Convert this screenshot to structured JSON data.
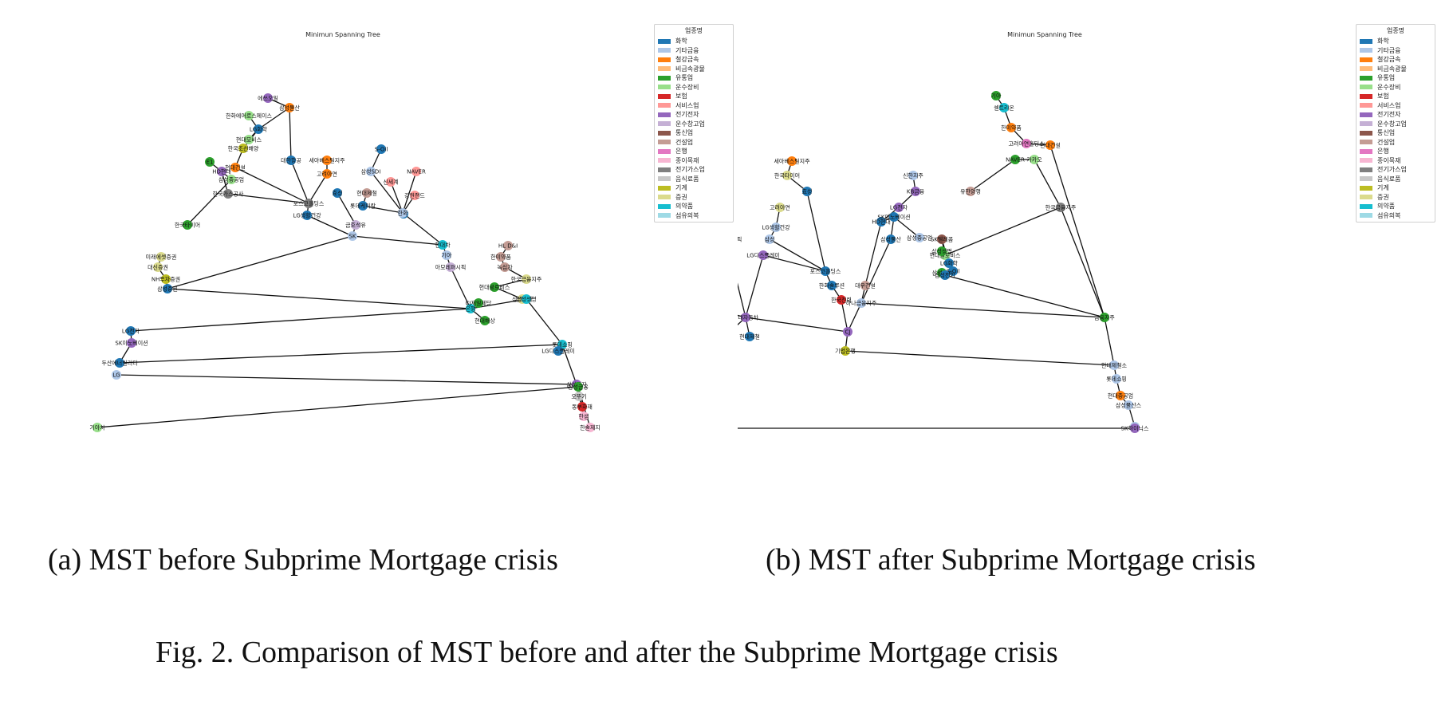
{
  "figure": {
    "caption": "Fig. 2.  Comparison of MST before and after the Subprime Mortgage crisis"
  },
  "panels": [
    {
      "id": "a",
      "title": "Minimun Spanning Tree",
      "caption": "(a) MST before Subprime Mortgage crisis",
      "legend_title": "업종명"
    },
    {
      "id": "b",
      "title": "Minimun Spanning Tree",
      "caption": "(b) MST after Subprime Mortgage crisis",
      "legend_title": "업종명"
    }
  ],
  "legend": [
    {
      "label": "화학",
      "color": "#1f77b4"
    },
    {
      "label": "기타금융",
      "color": "#aec7e8"
    },
    {
      "label": "철강금속",
      "color": "#ff7f0e"
    },
    {
      "label": "비금속광물",
      "color": "#ffbb78"
    },
    {
      "label": "유통업",
      "color": "#2ca02c"
    },
    {
      "label": "운수장비",
      "color": "#98df8a"
    },
    {
      "label": "보험",
      "color": "#d62728"
    },
    {
      "label": "서비스업",
      "color": "#ff9896"
    },
    {
      "label": "전기전자",
      "color": "#9467bd"
    },
    {
      "label": "운수창고업",
      "color": "#c5b0d5"
    },
    {
      "label": "통신업",
      "color": "#8c564b"
    },
    {
      "label": "건설업",
      "color": "#c49c94"
    },
    {
      "label": "은행",
      "color": "#e377c2"
    },
    {
      "label": "종이목재",
      "color": "#f7b6d2"
    },
    {
      "label": "전기가스업",
      "color": "#7f7f7f"
    },
    {
      "label": "음식료품",
      "color": "#c7c7c7"
    },
    {
      "label": "기계",
      "color": "#bcbd22"
    },
    {
      "label": "증권",
      "color": "#dbdb8d"
    },
    {
      "label": "의약품",
      "color": "#17becf"
    },
    {
      "label": "섬유의복",
      "color": "#9edae5"
    }
  ],
  "graphs": [
    {
      "nodes": [
        {
          "id": "a1",
          "label": "에쓰오일",
          "sector": 8
        },
        {
          "id": "a2",
          "label": "삼성물산",
          "sector": 2
        },
        {
          "id": "a3",
          "label": "한화에어로스페이스",
          "sector": 5
        },
        {
          "id": "a4",
          "label": "LG화학",
          "sector": 0
        },
        {
          "id": "a5",
          "label": "현대모비스",
          "sector": 5
        },
        {
          "id": "a6",
          "label": "한국조선해양",
          "sector": 16
        },
        {
          "id": "a7",
          "label": "E1",
          "sector": 4
        },
        {
          "id": "a8",
          "label": "HD현대",
          "sector": 8
        },
        {
          "id": "a9",
          "label": "한국가스공사",
          "sector": 14
        },
        {
          "id": "a10",
          "label": "현대건설",
          "sector": 2
        },
        {
          "id": "a11",
          "label": "삼성중공업",
          "sector": 5
        },
        {
          "id": "a12",
          "label": "포스코홀딩스",
          "sector": 14
        },
        {
          "id": "a13",
          "label": "LG생활건강",
          "sector": 0
        },
        {
          "id": "a14",
          "label": "한국타이어",
          "sector": 4
        },
        {
          "id": "a15",
          "label": "대한항공",
          "sector": 0
        },
        {
          "id": "a16",
          "label": "세아베스틸지주",
          "sector": 2
        },
        {
          "id": "a17",
          "label": "고려아연",
          "sector": 2
        },
        {
          "id": "a18",
          "label": "효성",
          "sector": 0
        },
        {
          "id": "a19",
          "label": "금호석유",
          "sector": 9
        },
        {
          "id": "a20",
          "label": "SK",
          "sector": 1
        },
        {
          "id": "a21",
          "label": "S-Oil",
          "sector": 0
        },
        {
          "id": "a22",
          "label": "삼성SDI",
          "sector": 1
        },
        {
          "id": "a23",
          "label": "NAVER",
          "sector": 7
        },
        {
          "id": "a24",
          "label": "현대제철",
          "sector": 11
        },
        {
          "id": "a25",
          "label": "롯데케미칼",
          "sector": 0
        },
        {
          "id": "a26",
          "label": "신세계",
          "sector": 7
        },
        {
          "id": "a27",
          "label": "강원랜드",
          "sector": 7
        },
        {
          "id": "a28",
          "label": "CJ",
          "sector": 0
        },
        {
          "id": "a29",
          "label": "한화",
          "sector": 1
        },
        {
          "id": "a30",
          "label": "현대차",
          "sector": 18
        },
        {
          "id": "a31",
          "label": "기아",
          "sector": 1
        },
        {
          "id": "a32",
          "label": "아모레퍼시픽",
          "sector": 9
        },
        {
          "id": "a33",
          "label": "미래에셋증권",
          "sector": 17
        },
        {
          "id": "a34",
          "label": "대신증권",
          "sector": 17
        },
        {
          "id": "a35",
          "label": "NH투자증권",
          "sector": 16
        },
        {
          "id": "a36",
          "label": "삼성증권",
          "sector": 0
        },
        {
          "id": "a37",
          "label": "은행",
          "sector": 18
        },
        {
          "id": "a38",
          "label": "HL D&I",
          "sector": 11
        },
        {
          "id": "a39",
          "label": "한미약품",
          "sector": 11
        },
        {
          "id": "a40",
          "label": "녹십자",
          "sector": 11
        },
        {
          "id": "a41",
          "label": "한국금융지주",
          "sector": 17
        },
        {
          "id": "a42",
          "label": "현대글로비스",
          "sector": 4
        },
        {
          "id": "a43",
          "label": "삼성화재",
          "sector": 17
        },
        {
          "id": "a44",
          "label": "삼성생명",
          "sector": 18
        },
        {
          "id": "a45",
          "label": "CJ제일제당",
          "sector": 4
        },
        {
          "id": "a46",
          "label": "현대해상",
          "sector": 4
        },
        {
          "id": "a47",
          "label": "LG전자",
          "sector": 0
        },
        {
          "id": "a48",
          "label": "롯데쇼핑",
          "sector": 18
        },
        {
          "id": "a49",
          "label": "LG디스플레이",
          "sector": 0
        },
        {
          "id": "a50",
          "label": "SK이노베이션",
          "sector": 8
        },
        {
          "id": "a51",
          "label": "두산에너빌리티",
          "sector": 0
        },
        {
          "id": "a52",
          "label": "LG",
          "sector": 1
        },
        {
          "id": "a53",
          "label": "삼성전자",
          "sector": 8
        },
        {
          "id": "a54",
          "label": "오뚜기",
          "sector": 15
        },
        {
          "id": "a55",
          "label": "동부화재",
          "sector": 6
        },
        {
          "id": "a56",
          "label": "한샘",
          "sector": 13
        },
        {
          "id": "a57",
          "label": "한솔제지",
          "sector": 13
        },
        {
          "id": "a58",
          "label": "기아차",
          "sector": 5
        },
        {
          "id": "a59",
          "label": "삼성금융",
          "sector": 4
        }
      ],
      "edges": [
        [
          "a1",
          "a2"
        ],
        [
          "a2",
          "a4"
        ],
        [
          "a3",
          "a4"
        ],
        [
          "a4",
          "a5"
        ],
        [
          "a2",
          "a15"
        ],
        [
          "a4",
          "a6"
        ],
        [
          "a6",
          "a10"
        ],
        [
          "a10",
          "a12"
        ],
        [
          "a8",
          "a9"
        ],
        [
          "a7",
          "a11"
        ],
        [
          "a9",
          "a12"
        ],
        [
          "a11",
          "a14"
        ],
        [
          "a12",
          "a13"
        ],
        [
          "a13",
          "a20"
        ],
        [
          "a15",
          "a12"
        ],
        [
          "a16",
          "a17"
        ],
        [
          "a17",
          "a12"
        ],
        [
          "a18",
          "a19"
        ],
        [
          "a19",
          "a20"
        ],
        [
          "a21",
          "a22"
        ],
        [
          "a22",
          "a28"
        ],
        [
          "a23",
          "a29"
        ],
        [
          "a24",
          "a25"
        ],
        [
          "a25",
          "a29"
        ],
        [
          "a26",
          "a29"
        ],
        [
          "a27",
          "a29"
        ],
        [
          "a28",
          "a29"
        ],
        [
          "a20",
          "a30"
        ],
        [
          "a29",
          "a30"
        ],
        [
          "a30",
          "a31"
        ],
        [
          "a31",
          "a32"
        ],
        [
          "a32",
          "a37"
        ],
        [
          "a33",
          "a34"
        ],
        [
          "a34",
          "a35"
        ],
        [
          "a35",
          "a36"
        ],
        [
          "a36",
          "a20"
        ],
        [
          "a37",
          "a36"
        ],
        [
          "a38",
          "a39"
        ],
        [
          "a39",
          "a40"
        ],
        [
          "a40",
          "a41"
        ],
        [
          "a41",
          "a42"
        ],
        [
          "a42",
          "a43"
        ],
        [
          "a43",
          "a44"
        ],
        [
          "a44",
          "a37"
        ],
        [
          "a45",
          "a37"
        ],
        [
          "a46",
          "a37"
        ],
        [
          "a37",
          "a47"
        ],
        [
          "a44",
          "a48"
        ],
        [
          "a48",
          "a49"
        ],
        [
          "a47",
          "a50"
        ],
        [
          "a50",
          "a51"
        ],
        [
          "a51",
          "a48"
        ],
        [
          "a52",
          "a53"
        ],
        [
          "a53",
          "a48"
        ],
        [
          "a53",
          "a54"
        ],
        [
          "a54",
          "a55"
        ],
        [
          "a53",
          "a59"
        ],
        [
          "a59",
          "a56"
        ],
        [
          "a59",
          "a55"
        ],
        [
          "a59",
          "a57"
        ],
        [
          "a59",
          "a58"
        ]
      ]
    },
    {
      "nodes": [
        {
          "id": "b1",
          "label": "두산",
          "sector": 1
        },
        {
          "id": "b2",
          "label": "금호석유",
          "sector": 11
        },
        {
          "id": "b3",
          "label": "한국가스공사",
          "sector": 7
        },
        {
          "id": "b4",
          "label": "HL D&I",
          "sector": 11
        },
        {
          "id": "b5",
          "label": "아모레퍼시픽",
          "sector": 7
        },
        {
          "id": "b6",
          "label": "현대모비스",
          "sector": 4
        },
        {
          "id": "b7",
          "label": "롯데케미칼",
          "sector": 0
        },
        {
          "id": "b8",
          "label": "한화",
          "sector": 1
        },
        {
          "id": "b9",
          "label": "에쓰오일",
          "sector": 0
        },
        {
          "id": "b10",
          "label": "현대제철",
          "sector": 0
        },
        {
          "id": "b11",
          "label": "세아베스틸지주",
          "sector": 2
        },
        {
          "id": "b12",
          "label": "한국타이어",
          "sector": 17
        },
        {
          "id": "b13",
          "label": "효성",
          "sector": 0
        },
        {
          "id": "b14",
          "label": "고려아연",
          "sector": 17
        },
        {
          "id": "b15",
          "label": "LG생활건강",
          "sector": 1
        },
        {
          "id": "b16",
          "label": "삼성",
          "sector": 1
        },
        {
          "id": "b17",
          "label": "LG디스플레이",
          "sector": 8
        },
        {
          "id": "b18",
          "label": "포스코홀딩스",
          "sector": 0
        },
        {
          "id": "b19",
          "label": "한화솔루션",
          "sector": 0
        },
        {
          "id": "b20",
          "label": "현대자동차",
          "sector": 8
        },
        {
          "id": "b21",
          "label": "한국전력",
          "sector": 6
        },
        {
          "id": "b22",
          "label": "신한지주",
          "sector": 1
        },
        {
          "id": "b23",
          "label": "KB금융",
          "sector": 8
        },
        {
          "id": "b24",
          "label": "LG전자",
          "sector": 8
        },
        {
          "id": "b25",
          "label": "CJ",
          "sector": 8
        },
        {
          "id": "b26",
          "label": "HD현대",
          "sector": 0
        },
        {
          "id": "b27",
          "label": "SK이노베이션",
          "sector": 0
        },
        {
          "id": "b28",
          "label": "삼성물산",
          "sector": 0
        },
        {
          "id": "b29",
          "label": "하나금융지주",
          "sector": 1
        },
        {
          "id": "b30",
          "label": "삼성중공업",
          "sector": 1
        },
        {
          "id": "b31",
          "label": "대우건설",
          "sector": 11
        },
        {
          "id": "b32",
          "label": "기아",
          "sector": 4
        },
        {
          "id": "b33",
          "label": "셀트리온",
          "sector": 18
        },
        {
          "id": "b34",
          "label": "한미약품",
          "sector": 2
        },
        {
          "id": "b35",
          "label": "고려아연홀딩스",
          "sector": 12
        },
        {
          "id": "b36",
          "label": "현대건설",
          "sector": 2
        },
        {
          "id": "b37",
          "label": "유한양행",
          "sector": 11
        },
        {
          "id": "b38",
          "label": "NAVER",
          "sector": 4
        },
        {
          "id": "b39",
          "label": "카카오",
          "sector": 5
        },
        {
          "id": "b40",
          "label": "한국금융지주",
          "sector": 14
        },
        {
          "id": "b41",
          "label": "현대글로비스",
          "sector": 5
        },
        {
          "id": "b42",
          "label": "SK텔레콤",
          "sector": 10
        },
        {
          "id": "b43",
          "label": "LG화학",
          "sector": 0
        },
        {
          "id": "b44",
          "label": "삼성생명",
          "sector": 4
        },
        {
          "id": "b45",
          "label": "S-Oil",
          "sector": 0
        },
        {
          "id": "b46",
          "label": "삼성SDI",
          "sector": 4
        },
        {
          "id": "b47",
          "label": "삼성전기",
          "sector": 0
        },
        {
          "id": "b48",
          "label": "금융지주",
          "sector": 4
        },
        {
          "id": "b49",
          "label": "현대제철소",
          "sector": 1
        },
        {
          "id": "b50",
          "label": "롯데쇼핑",
          "sector": 1
        },
        {
          "id": "b51",
          "label": "현대중공업",
          "sector": 2
        },
        {
          "id": "b52",
          "label": "삼성물산스",
          "sector": 1
        },
        {
          "id": "b53",
          "label": "LG",
          "sector": 1
        },
        {
          "id": "b54",
          "label": "OCI홀딩스",
          "sector": 0
        },
        {
          "id": "b55",
          "label": "삼성전자",
          "sector": 8
        },
        {
          "id": "b56",
          "label": "SK하이닉스",
          "sector": 8
        },
        {
          "id": "b57",
          "label": "기업은행",
          "sector": 16
        }
      ],
      "edges": [
        [
          "b1",
          "b2"
        ],
        [
          "b2",
          "b3"
        ],
        [
          "b3",
          "b4"
        ],
        [
          "b4",
          "b5"
        ],
        [
          "b5",
          "b20"
        ],
        [
          "b6",
          "b7"
        ],
        [
          "b7",
          "b8"
        ],
        [
          "b8",
          "b9"
        ],
        [
          "b9",
          "b20"
        ],
        [
          "b10",
          "b20"
        ],
        [
          "b11",
          "b12"
        ],
        [
          "b12",
          "b13"
        ],
        [
          "b13",
          "b18"
        ],
        [
          "b14",
          "b15"
        ],
        [
          "b15",
          "b16"
        ],
        [
          "b16",
          "b18"
        ],
        [
          "b17",
          "b18"
        ],
        [
          "b18",
          "b19"
        ],
        [
          "b19",
          "b21"
        ],
        [
          "b21",
          "b25"
        ],
        [
          "b17",
          "b20"
        ],
        [
          "b20",
          "b25"
        ],
        [
          "b22",
          "b23"
        ],
        [
          "b23",
          "b24"
        ],
        [
          "b24",
          "b26"
        ],
        [
          "b26",
          "b27"
        ],
        [
          "b27",
          "b28"
        ],
        [
          "b28",
          "b29"
        ],
        [
          "b29",
          "b31"
        ],
        [
          "b31",
          "b26"
        ],
        [
          "b25",
          "b29"
        ],
        [
          "b29",
          "b48"
        ],
        [
          "b30",
          "b27"
        ],
        [
          "b32",
          "b33"
        ],
        [
          "b33",
          "b34"
        ],
        [
          "b34",
          "b35"
        ],
        [
          "b35",
          "b36"
        ],
        [
          "b36",
          "b48"
        ],
        [
          "b37",
          "b38"
        ],
        [
          "b38",
          "b39"
        ],
        [
          "b39",
          "b40"
        ],
        [
          "b40",
          "b41"
        ],
        [
          "b41",
          "b42"
        ],
        [
          "b42",
          "b43"
        ],
        [
          "b43",
          "b44"
        ],
        [
          "b44",
          "b45"
        ],
        [
          "b45",
          "b46"
        ],
        [
          "b46",
          "b47"
        ],
        [
          "b47",
          "b48"
        ],
        [
          "b48",
          "b49"
        ],
        [
          "b49",
          "b50"
        ],
        [
          "b50",
          "b51"
        ],
        [
          "b51",
          "b52"
        ],
        [
          "b52",
          "b53"
        ],
        [
          "b53",
          "b56"
        ],
        [
          "b20",
          "b54"
        ],
        [
          "b54",
          "b55"
        ],
        [
          "b55",
          "b56"
        ],
        [
          "b25",
          "b57"
        ],
        [
          "b57",
          "b49"
        ],
        [
          "b40",
          "b48"
        ]
      ]
    }
  ]
}
